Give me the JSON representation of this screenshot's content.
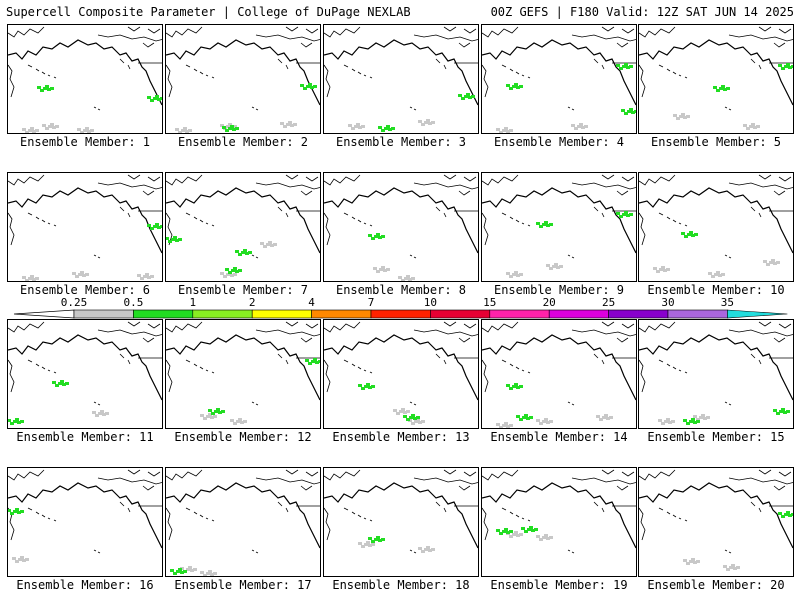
{
  "header": {
    "left": "Supercell Composite Parameter | College of DuPage NEXLAB",
    "right": "00Z GEFS | F180 Valid: 12Z SAT JUN 14 2025"
  },
  "label_prefix": "Ensemble Member: ",
  "members": [
    {
      "label": "Ensemble Member: 1",
      "gray": [
        [
          20,
          104
        ],
        [
          40,
          100
        ],
        [
          75,
          106
        ]
      ],
      "green": [
        [
          35,
          62
        ],
        [
          155,
          72
        ]
      ]
    },
    {
      "label": "Ensemble Member: 2",
      "gray": [
        [
          15,
          105
        ],
        [
          60,
          100
        ],
        [
          120,
          98
        ]
      ],
      "green": [
        [
          62,
          102
        ],
        [
          140,
          60
        ]
      ]
    },
    {
      "label": "Ensemble Member: 3",
      "gray": [
        [
          30,
          100
        ],
        [
          100,
          96
        ]
      ],
      "green": [
        [
          60,
          102
        ],
        [
          140,
          70
        ]
      ]
    },
    {
      "label": "Ensemble Member: 4",
      "gray": [
        [
          20,
          104
        ],
        [
          95,
          100
        ]
      ],
      "green": [
        [
          30,
          60
        ],
        [
          140,
          40
        ],
        [
          150,
          85
        ]
      ]
    },
    {
      "label": "Ensemble Member: 5",
      "gray": [
        [
          40,
          90
        ],
        [
          110,
          100
        ]
      ],
      "green": [
        [
          80,
          62
        ],
        [
          150,
          40
        ]
      ]
    },
    {
      "label": "Ensemble Member: 6",
      "gray": [
        [
          20,
          104
        ],
        [
          70,
          100
        ],
        [
          135,
          102
        ]
      ],
      "green": [
        [
          150,
          52
        ]
      ]
    },
    {
      "label": "Ensemble Member: 7",
      "gray": [
        [
          60,
          100
        ],
        [
          100,
          70
        ]
      ],
      "green": [
        [
          65,
          96
        ],
        [
          75,
          78
        ],
        [
          5,
          65
        ]
      ]
    },
    {
      "label": "Ensemble Member: 8",
      "gray": [
        [
          55,
          95
        ],
        [
          80,
          104
        ]
      ],
      "green": [
        [
          50,
          62
        ]
      ]
    },
    {
      "label": "Ensemble Member: 9",
      "gray": [
        [
          30,
          100
        ],
        [
          70,
          92
        ]
      ],
      "green": [
        [
          140,
          40
        ],
        [
          60,
          50
        ]
      ]
    },
    {
      "label": "Ensemble Member: 10",
      "gray": [
        [
          20,
          95
        ],
        [
          75,
          100
        ],
        [
          130,
          88
        ]
      ],
      "green": [
        [
          48,
          60
        ]
      ]
    },
    {
      "label": "Ensemble Member: 11",
      "gray": [
        [
          90,
          92
        ]
      ],
      "green": [
        [
          5,
          100
        ],
        [
          50,
          62
        ]
      ]
    },
    {
      "label": "Ensemble Member: 12",
      "gray": [
        [
          40,
          95
        ],
        [
          70,
          100
        ]
      ],
      "green": [
        [
          48,
          90
        ],
        [
          150,
          40
        ]
      ]
    },
    {
      "label": "Ensemble Member: 13",
      "gray": [
        [
          75,
          90
        ],
        [
          90,
          100
        ]
      ],
      "green": [
        [
          40,
          65
        ],
        [
          85,
          96
        ]
      ]
    },
    {
      "label": "Ensemble Member: 14",
      "gray": [
        [
          20,
          104
        ],
        [
          60,
          100
        ],
        [
          120,
          96
        ]
      ],
      "green": [
        [
          30,
          65
        ],
        [
          40,
          96
        ]
      ]
    },
    {
      "label": "Ensemble Member: 15",
      "gray": [
        [
          25,
          100
        ],
        [
          60,
          96
        ]
      ],
      "green": [
        [
          140,
          90
        ],
        [
          50,
          100
        ]
      ]
    },
    {
      "label": "Ensemble Member: 16",
      "gray": [
        [
          10,
          90
        ]
      ],
      "green": [
        [
          5,
          42
        ]
      ]
    },
    {
      "label": "Ensemble Member: 17",
      "gray": [
        [
          20,
          100
        ],
        [
          40,
          106
        ]
      ],
      "green": [
        [
          10,
          102
        ]
      ]
    },
    {
      "label": "Ensemble Member: 18",
      "gray": [
        [
          40,
          75
        ],
        [
          100,
          80
        ]
      ],
      "green": [
        [
          50,
          70
        ]
      ]
    },
    {
      "label": "Ensemble Member: 19",
      "gray": [
        [
          30,
          65
        ],
        [
          60,
          68
        ]
      ],
      "green": [
        [
          20,
          62
        ],
        [
          45,
          60
        ]
      ]
    },
    {
      "label": "Ensemble Member: 20",
      "gray": [
        [
          50,
          92
        ],
        [
          90,
          98
        ]
      ],
      "green": [
        [
          150,
          45
        ]
      ]
    }
  ],
  "colorbar": {
    "ticks": [
      "0.25",
      "0.5",
      "1",
      "2",
      "4",
      "7",
      "10",
      "15",
      "20",
      "25",
      "30",
      "35"
    ],
    "colors": [
      "#c8c8c8",
      "#22dd22",
      "#88ee22",
      "#ffff00",
      "#ff8800",
      "#ff2200",
      "#e60033",
      "#ff22aa",
      "#dd00dd",
      "#8800cc",
      "#aa66dd",
      "#22dddd"
    ]
  }
}
